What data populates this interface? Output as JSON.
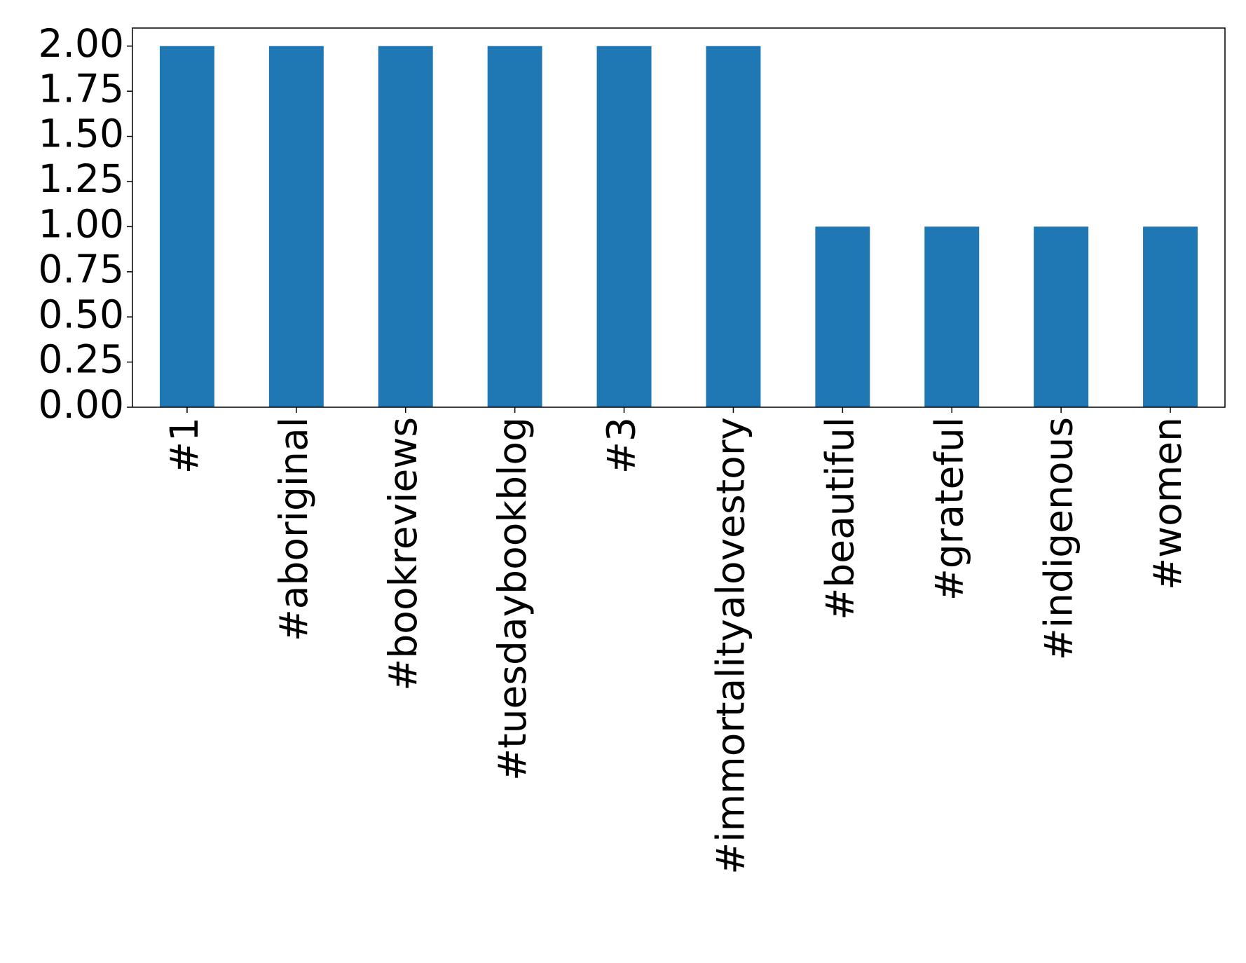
{
  "chart_data": {
    "type": "bar",
    "categories": [
      "#1",
      "#aboriginal",
      "#bookreviews",
      "#tuesdaybookblog",
      "#3",
      "#immortalityalovestory",
      "#beautiful",
      "#grateful",
      "#indigenous",
      "#women"
    ],
    "values": [
      2,
      2,
      2,
      2,
      2,
      2,
      1,
      1,
      1,
      1
    ],
    "color": "#1f77b4",
    "ylim": [
      0,
      2.1
    ],
    "yticks": [
      {
        "value": 0,
        "label": "0.00"
      },
      {
        "value": 0.25,
        "label": "0.25"
      },
      {
        "value": 0.5,
        "label": "0.50"
      },
      {
        "value": 0.75,
        "label": "0.75"
      },
      {
        "value": 1,
        "label": "1.00"
      },
      {
        "value": 1.25,
        "label": "1.25"
      },
      {
        "value": 1.5,
        "label": "1.50"
      },
      {
        "value": 1.75,
        "label": "1.75"
      },
      {
        "value": 2,
        "label": "2.00"
      }
    ],
    "grid": false
  }
}
